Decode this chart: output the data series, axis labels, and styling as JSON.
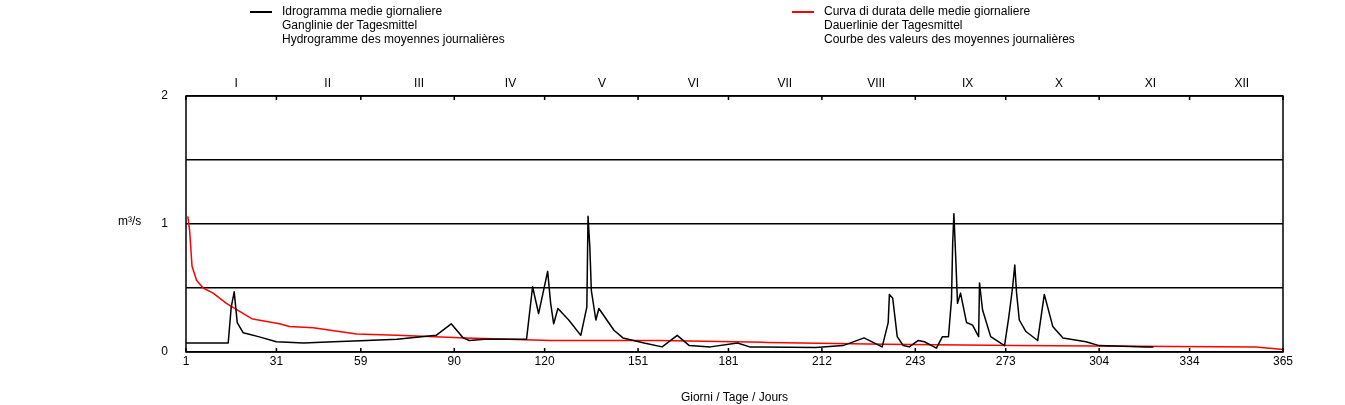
{
  "chart_data": {
    "type": "line",
    "xlabel": "Giorni / Tage / Jours",
    "ylabel": "m³/s",
    "xlim": [
      1,
      365
    ],
    "xticks": [
      1,
      31,
      59,
      90,
      120,
      151,
      181,
      212,
      243,
      273,
      304,
      334,
      365
    ],
    "annotations": [
      "I",
      "II",
      "III",
      "IV",
      "V",
      "VI",
      "VII",
      "VIII",
      "IX",
      "X",
      "XI",
      "XII"
    ],
    "ylim": [
      0,
      2
    ],
    "yticks": [
      0,
      {
        "value": 0.5,
        "label": null
      },
      1,
      {
        "value": 1.5,
        "label": null
      },
      2
    ],
    "grid": "y",
    "legend": "top",
    "marker": "none",
    "line_style": "solid",
    "series": [
      {
        "name": "Idrogramma medie giornaliere\nGanglinie der Tagesmittel\nHydrogramme des moyennes journalières",
        "color": "#000000",
        "x": [
          1,
          15,
          16,
          17,
          18,
          20,
          25,
          31,
          40,
          50,
          61,
          71,
          84,
          89,
          93,
          95,
          100,
          114,
          116,
          118,
          121,
          122,
          123,
          124.4,
          128,
          132,
          134,
          134.4,
          135,
          135.5,
          137,
          138,
          143,
          146,
          153,
          159,
          164,
          168,
          175,
          184,
          188,
          210,
          219,
          226,
          232,
          234,
          234.4,
          235.5,
          237,
          239,
          241,
          244,
          246,
          250,
          252,
          254,
          255,
          255.4,
          255.8,
          256.4,
          257,
          258,
          260,
          262,
          264,
          264.3,
          265.3,
          268,
          272.6,
          274,
          275.3,
          276,
          276.6,
          277.5,
          279.7,
          283.6,
          285.8,
          288.6,
          292,
          299.6,
          304,
          319.5,
          322
        ],
        "values": [
          0.07,
          0.07,
          0.35,
          0.47,
          0.23,
          0.15,
          0.12,
          0.08,
          0.07,
          0.08,
          0.09,
          0.1,
          0.13,
          0.22,
          0.11,
          0.09,
          0.1,
          0.1,
          0.51,
          0.3,
          0.63,
          0.38,
          0.22,
          0.34,
          0.25,
          0.13,
          0.35,
          1.06,
          0.82,
          0.48,
          0.25,
          0.34,
          0.17,
          0.11,
          0.07,
          0.04,
          0.13,
          0.05,
          0.04,
          0.07,
          0.04,
          0.035,
          0.05,
          0.11,
          0.04,
          0.23,
          0.45,
          0.42,
          0.12,
          0.05,
          0.04,
          0.09,
          0.08,
          0.03,
          0.12,
          0.12,
          0.41,
          0.85,
          1.08,
          0.74,
          0.38,
          0.46,
          0.23,
          0.21,
          0.12,
          0.54,
          0.33,
          0.12,
          0.05,
          0.27,
          0.51,
          0.68,
          0.46,
          0.25,
          0.16,
          0.09,
          0.45,
          0.2,
          0.11,
          0.08,
          0.05,
          0.04,
          0.04
        ]
      },
      {
        "name": "Curva di durata delle medie giornaliere\nDauerlinie der Tagesmittel\nCourbe des valeurs des moyennes journalières",
        "color": "#ff0000",
        "x": [
          1.6,
          2.2,
          3,
          4.5,
          6.7,
          10,
          14.4,
          22.8,
          32,
          35.3,
          43.2,
          57.6,
          71,
          94,
          122,
          158,
          194,
          233,
          276,
          356,
          365
        ],
        "values": [
          1.06,
          0.95,
          0.67,
          0.56,
          0.5,
          0.46,
          0.38,
          0.26,
          0.22,
          0.2,
          0.19,
          0.14,
          0.13,
          0.11,
          0.09,
          0.09,
          0.075,
          0.06,
          0.05,
          0.04,
          0.02
        ]
      }
    ]
  }
}
